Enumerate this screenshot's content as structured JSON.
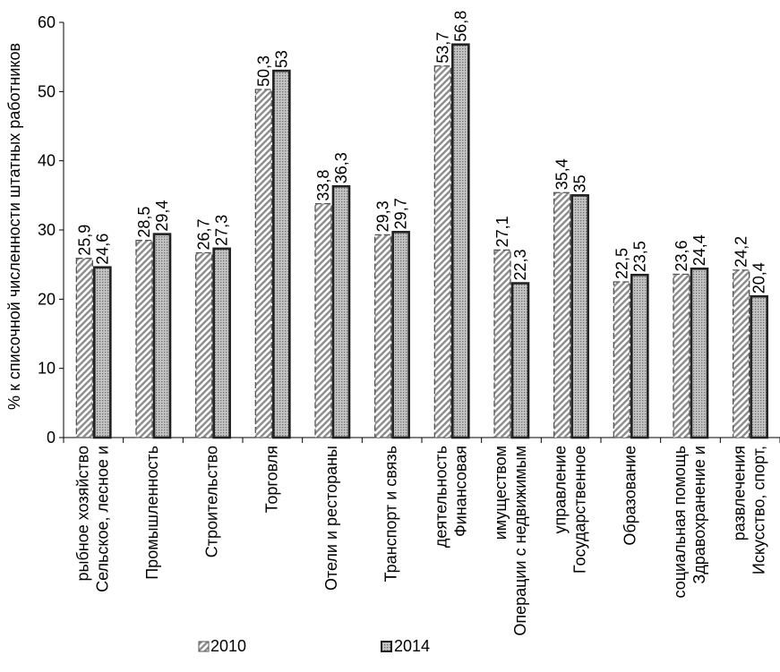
{
  "chart_data": {
    "type": "bar",
    "title": "",
    "xlabel": "",
    "ylabel": "% к списочной численности штатных работников",
    "ylim": [
      0,
      60
    ],
    "yticks": [
      0,
      10,
      20,
      30,
      40,
      50,
      60
    ],
    "grid": false,
    "legend_position": "bottom",
    "categories": [
      [
        "Сельское, лесное и",
        "рыбное хозяйство"
      ],
      [
        "Промышленность"
      ],
      [
        "Строительство"
      ],
      [
        "Торговля"
      ],
      [
        "Отели и рестораны"
      ],
      [
        "Транспорт и связь"
      ],
      [
        "Финансовая",
        "деятельность"
      ],
      [
        "Операции с недвижимым",
        "имуществом"
      ],
      [
        "Государственное",
        "управление"
      ],
      [
        "Образование"
      ],
      [
        "Здравохранение и",
        "социальная помощь"
      ],
      [
        "Искусство, спорт,",
        "развлечения"
      ]
    ],
    "series": [
      {
        "name": "2010",
        "values": [
          25.9,
          28.5,
          26.7,
          50.3,
          33.8,
          29.3,
          53.7,
          27.1,
          35.4,
          22.5,
          23.6,
          24.2
        ],
        "labels": [
          "25,9",
          "28,5",
          "26,7",
          "50,3",
          "33,8",
          "29,3",
          "53,7",
          "27,1",
          "35,4",
          "22,5",
          "23,6",
          "24,2"
        ],
        "pattern": "diagonal-hatch",
        "border_color": "#555555",
        "border_style": "dashed"
      },
      {
        "name": "2014",
        "values": [
          24.6,
          29.4,
          27.3,
          53,
          36.3,
          29.7,
          56.8,
          22.3,
          35,
          23.5,
          24.4,
          20.4
        ],
        "labels": [
          "24,6",
          "29,4",
          "27,3",
          "53",
          "36,3",
          "29,7",
          "56,8",
          "22,3",
          "35",
          "23,5",
          "24,4",
          "20,4"
        ],
        "pattern": "dotted-grey",
        "border_color": "#222222",
        "border_style": "solid"
      }
    ]
  }
}
